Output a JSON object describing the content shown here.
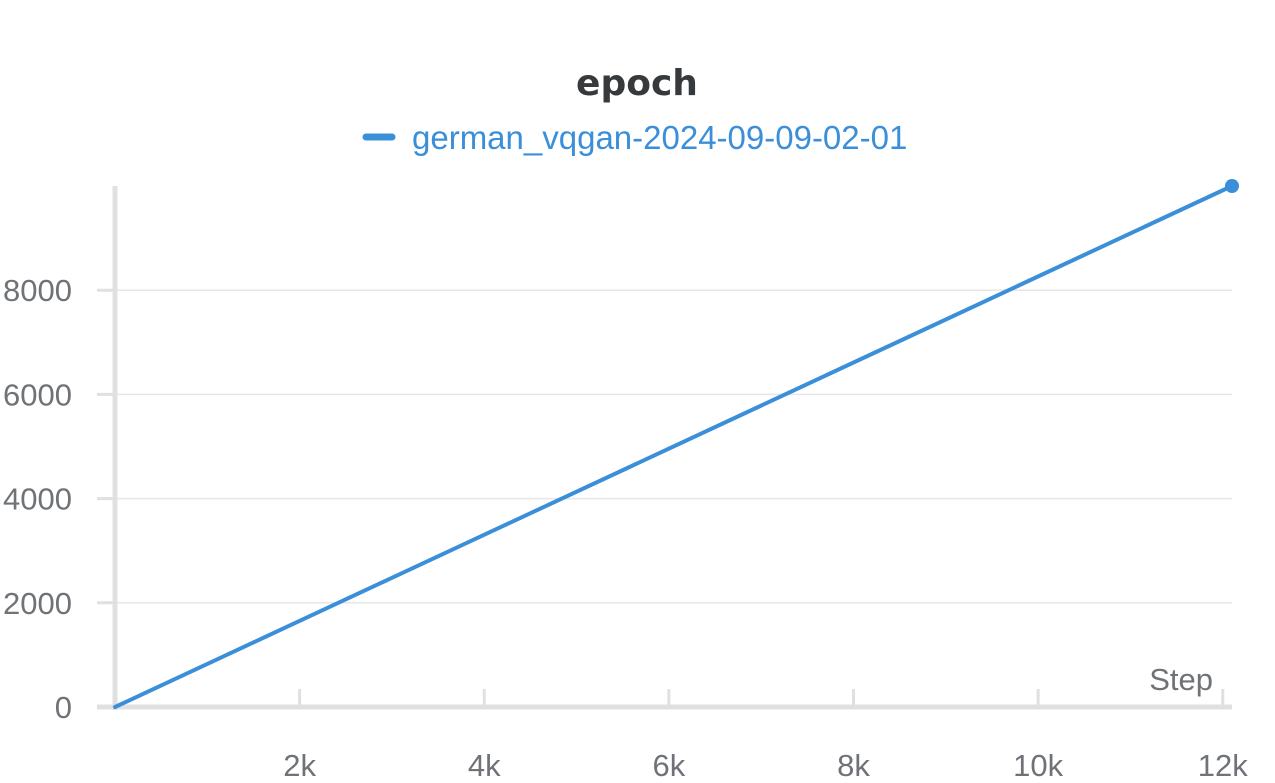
{
  "chart_data": {
    "type": "line",
    "title": "epoch",
    "xlabel": "Step",
    "ylabel": "",
    "xlim": [
      0,
      12100
    ],
    "ylim": [
      0,
      10000
    ],
    "x_ticks": [
      2000,
      4000,
      6000,
      8000,
      10000,
      12000
    ],
    "x_tick_labels": [
      "2k",
      "4k",
      "6k",
      "8k",
      "10k",
      "12k"
    ],
    "y_ticks": [
      0,
      2000,
      4000,
      6000,
      8000
    ],
    "y_tick_labels": [
      "0",
      "2000",
      "4000",
      "6000",
      "8000"
    ],
    "grid": true,
    "legend_position": "top-center",
    "series": [
      {
        "name": "german_vqgan-2024-09-09-02-01",
        "color": "#3b8fd9",
        "x": [
          0,
          12100
        ],
        "y": [
          0,
          10000
        ],
        "marker_at_end": true
      }
    ]
  }
}
